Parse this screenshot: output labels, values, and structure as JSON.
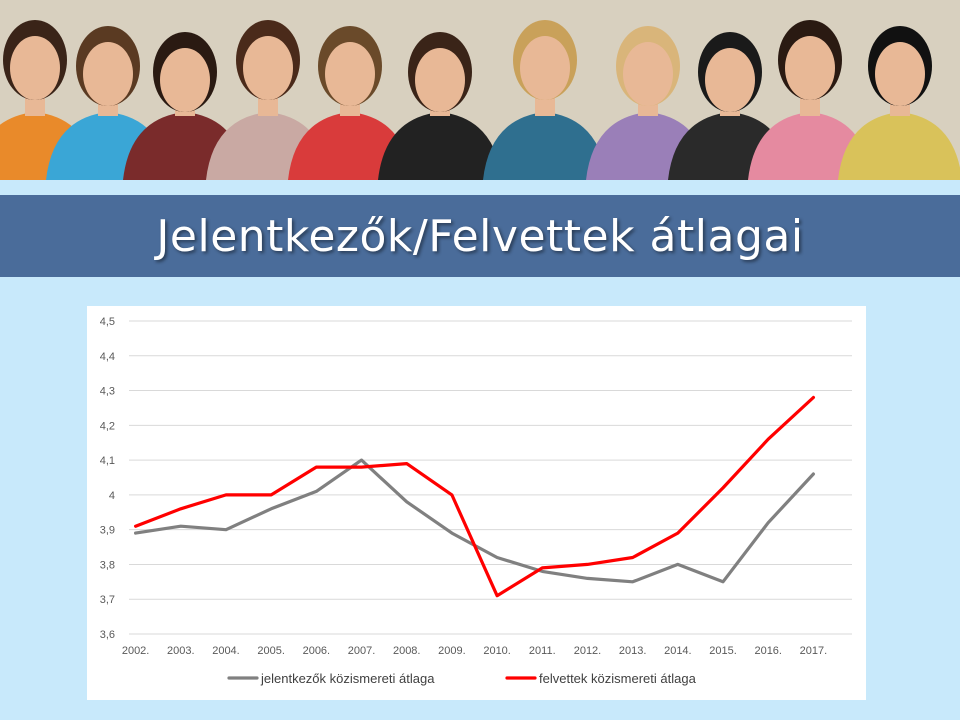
{
  "header": {
    "title": "Jelentkezők/Felvettek átlagai",
    "photo": "group-photo-of-students"
  },
  "colors": {
    "background": "#c8e9fb",
    "title_band": "#4a6c9a",
    "series_applicants": "#808080",
    "series_admitted": "#ff0000"
  },
  "chart_data": {
    "type": "line",
    "title": "",
    "xlabel": "",
    "ylabel": "",
    "categories": [
      "2002.",
      "2003.",
      "2004.",
      "2005.",
      "2006.",
      "2007.",
      "2008.",
      "2009.",
      "2010.",
      "2011.",
      "2012.",
      "2013.",
      "2014.",
      "2015.",
      "2016.",
      "2017."
    ],
    "ylim": [
      3.6,
      4.5
    ],
    "y_ticks": [
      3.6,
      3.7,
      3.8,
      3.9,
      4.0,
      4.1,
      4.2,
      4.3,
      4.4,
      4.5
    ],
    "y_tick_labels": [
      "3,6",
      "3,7",
      "3,8",
      "3,9",
      "4",
      "4,1",
      "4,2",
      "4,3",
      "4,4",
      "4,5"
    ],
    "grid": true,
    "legend_position": "bottom",
    "series": [
      {
        "name": "jelentkezők közismereti átlaga",
        "color": "#808080",
        "values": [
          3.89,
          3.91,
          3.9,
          3.96,
          4.01,
          4.1,
          3.98,
          3.89,
          3.82,
          3.78,
          3.76,
          3.75,
          3.8,
          3.75,
          3.92,
          4.06
        ]
      },
      {
        "name": "felvettek közismereti átlaga",
        "color": "#ff0000",
        "values": [
          3.91,
          3.96,
          4.0,
          4.0,
          4.08,
          4.08,
          4.09,
          4.0,
          3.71,
          3.79,
          3.8,
          3.82,
          3.89,
          4.02,
          4.16,
          4.28
        ]
      }
    ]
  }
}
